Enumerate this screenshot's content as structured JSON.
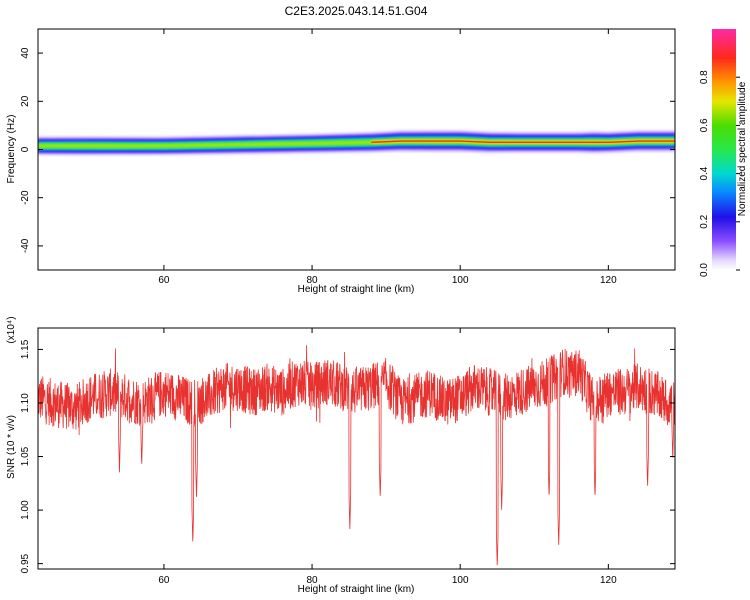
{
  "title": "C2E3.2025.043.14.51.G04",
  "chart_data": [
    {
      "type": "heatmap",
      "title": "C2E3.2025.043.14.51.G04",
      "xlabel": "Height of straight line (km)",
      "ylabel": "Frequency (Hz)",
      "xlim": [
        43,
        129
      ],
      "ylim": [
        -50,
        50
      ],
      "xticks": [
        60,
        80,
        100,
        120
      ],
      "yticks": [
        -40,
        -20,
        0,
        20,
        40
      ],
      "band": {
        "description_values": "normalized spectral amplitude along frequency band",
        "x": [
          43,
          50,
          60,
          70,
          80,
          88,
          92,
          96,
          100,
          104,
          108,
          112,
          116,
          118,
          120,
          124,
          129
        ],
        "center_freq_hz": [
          1.5,
          1.5,
          1.5,
          2,
          2.5,
          3,
          3.5,
          3.5,
          3.5,
          3,
          3,
          3,
          3,
          3,
          3,
          3.5,
          3.5
        ],
        "peak_amplitude": [
          0.5,
          0.55,
          0.5,
          0.55,
          0.6,
          0.7,
          0.8,
          0.85,
          0.85,
          0.8,
          0.75,
          0.75,
          0.75,
          0.9,
          0.8,
          0.8,
          0.8
        ]
      },
      "colorbar": {
        "label": "Normalized spectral amplitude",
        "ticks": [
          "0.0",
          "0.2",
          "0.4",
          "0.6",
          "0.8"
        ],
        "range": [
          0,
          1
        ]
      }
    },
    {
      "type": "line",
      "xlabel": "Height of straight line (km)",
      "ylabel": "SNR (10 * v/v)",
      "multiplier": "(x10⁴)",
      "xlim": [
        43,
        129
      ],
      "ylim": [
        0.945,
        1.17
      ],
      "xticks": [
        60,
        80,
        100,
        120
      ],
      "yticks": [
        "0.95",
        "1.00",
        "1.05",
        "1.10",
        "1.15"
      ],
      "color": "#e8322f",
      "series": [
        {
          "x": [
            43,
            45,
            48,
            50,
            53,
            55,
            57,
            60,
            62,
            64,
            66,
            68,
            70,
            72,
            74,
            76,
            78,
            80,
            82,
            84,
            86,
            88,
            90,
            92,
            94,
            96,
            98,
            100,
            102,
            104,
            106,
            108,
            110,
            112,
            114,
            115,
            116,
            118,
            120,
            122,
            124,
            126,
            128,
            129
          ],
          "values": [
            1.105,
            1.1,
            1.095,
            1.105,
            1.11,
            1.105,
            1.1,
            1.11,
            1.105,
            1.1,
            1.105,
            1.115,
            1.115,
            1.11,
            1.115,
            1.11,
            1.12,
            1.115,
            1.12,
            1.115,
            1.11,
            1.115,
            1.12,
            1.1,
            1.105,
            1.11,
            1.1,
            1.105,
            1.115,
            1.11,
            1.105,
            1.11,
            1.115,
            1.12,
            1.13,
            1.125,
            1.13,
            1.1,
            1.11,
            1.11,
            1.115,
            1.11,
            1.1,
            1.1
          ]
        }
      ],
      "dips": [
        {
          "x": 54,
          "value": 1.035
        },
        {
          "x": 57,
          "value": 1.04
        },
        {
          "x": 63.9,
          "value": 0.968
        },
        {
          "x": 64.4,
          "value": 1.01
        },
        {
          "x": 85.1,
          "value": 0.981
        },
        {
          "x": 89.2,
          "value": 1.01
        },
        {
          "x": 105.0,
          "value": 0.946
        },
        {
          "x": 105.6,
          "value": 1.0
        },
        {
          "x": 112.0,
          "value": 1.01
        },
        {
          "x": 113.3,
          "value": 0.966
        },
        {
          "x": 118.2,
          "value": 1.01
        },
        {
          "x": 125.3,
          "value": 1.02
        },
        {
          "x": 128.7,
          "value": 1.045
        }
      ]
    }
  ]
}
